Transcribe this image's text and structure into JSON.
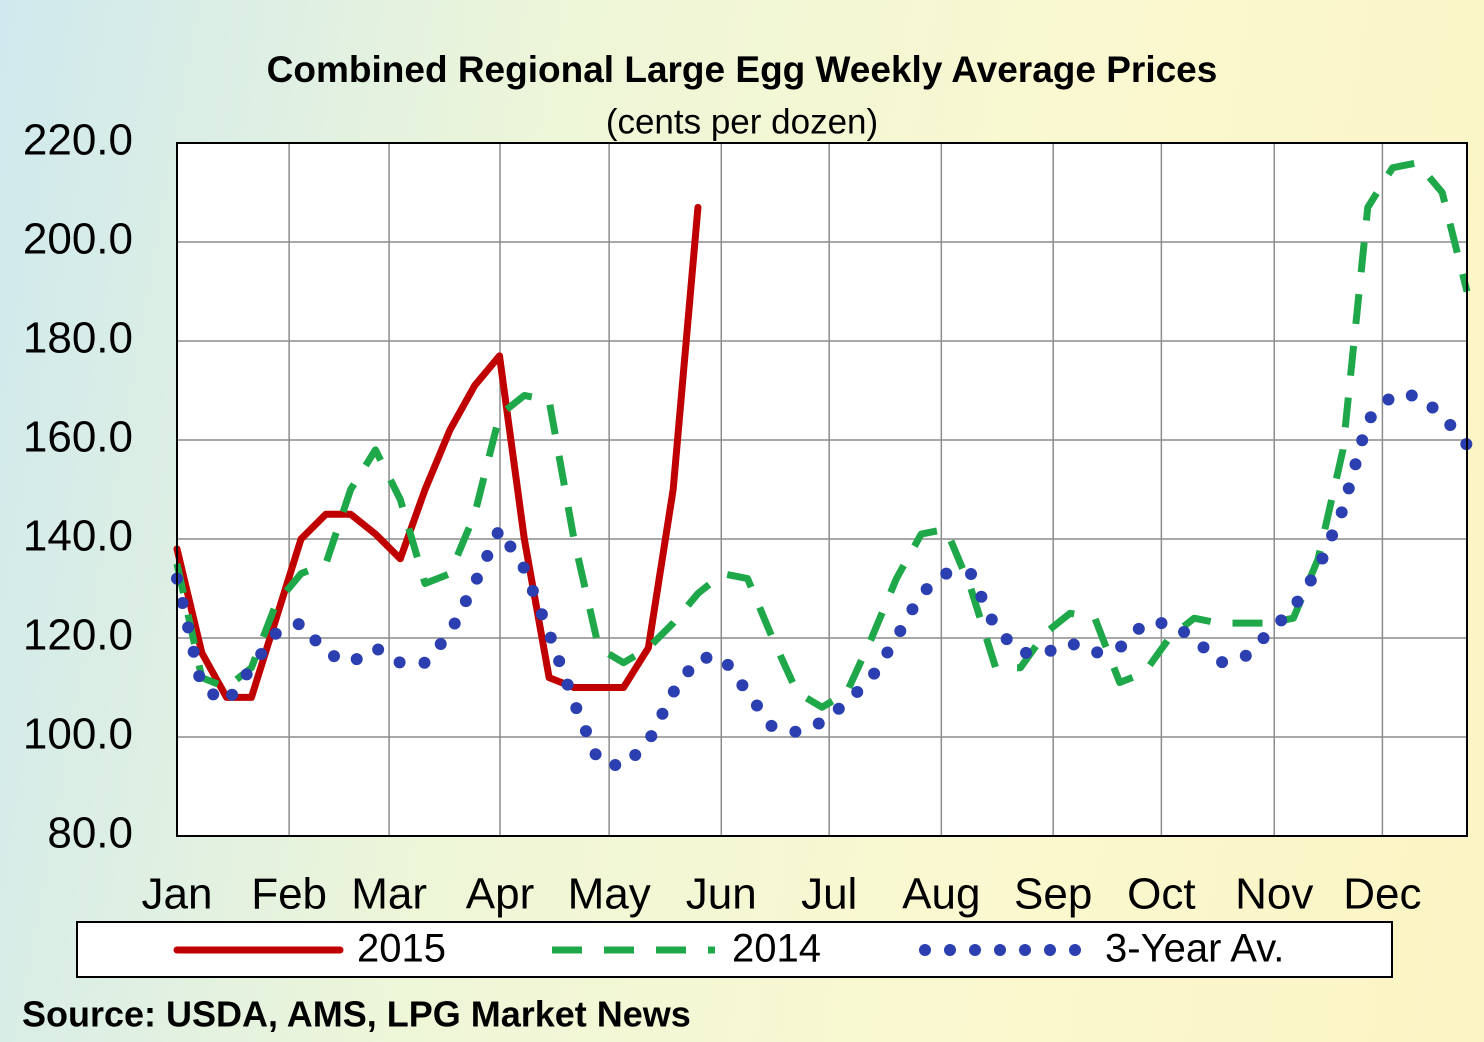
{
  "chart_data": {
    "type": "line",
    "title": "Combined Regional Large Egg Weekly Average Prices",
    "subtitle": "(cents per dozen)",
    "source": "Source: USDA, AMS, LPG  Market News",
    "x": [
      1,
      2,
      3,
      4,
      5,
      6,
      7,
      8,
      9,
      10,
      11,
      12,
      13,
      14,
      15,
      16,
      17,
      18,
      19,
      20,
      21,
      22,
      23,
      24,
      25,
      26,
      27,
      28,
      29,
      30,
      31,
      32,
      33,
      34,
      35,
      36,
      37,
      38,
      39,
      40,
      41,
      42,
      43,
      44,
      45,
      46,
      47,
      48,
      49,
      50,
      51,
      52,
      53
    ],
    "xlim": [
      1,
      53
    ],
    "xticks": [
      {
        "value": 1,
        "label": "Jan"
      },
      {
        "value": 5.52,
        "label": "Feb"
      },
      {
        "value": 9.55,
        "label": "Mar"
      },
      {
        "value": 14.02,
        "label": "Apr"
      },
      {
        "value": 18.42,
        "label": "May"
      },
      {
        "value": 22.94,
        "label": "Jun"
      },
      {
        "value": 27.29,
        "label": "Jul"
      },
      {
        "value": 31.81,
        "label": "Aug"
      },
      {
        "value": 36.32,
        "label": "Sep"
      },
      {
        "value": 40.68,
        "label": "Oct"
      },
      {
        "value": 45.23,
        "label": "Nov"
      },
      {
        "value": 49.59,
        "label": "Dec"
      }
    ],
    "ylim": [
      80,
      220
    ],
    "yticks": [
      {
        "value": 80,
        "label": "80.0"
      },
      {
        "value": 100,
        "label": "100.0"
      },
      {
        "value": 120,
        "label": "120.0"
      },
      {
        "value": 140,
        "label": "140.0"
      },
      {
        "value": 160,
        "label": "160.0"
      },
      {
        "value": 180,
        "label": "180.0"
      },
      {
        "value": 200,
        "label": "200.0"
      },
      {
        "value": 220,
        "label": "220.0"
      }
    ],
    "grid": true,
    "series": [
      {
        "name": "2015",
        "color": "#c00000",
        "style": "solid",
        "values": [
          138,
          117,
          108,
          108,
          124,
          140,
          145,
          145,
          141,
          136,
          150,
          162,
          171,
          177,
          140,
          112,
          110,
          110,
          110,
          118,
          150,
          207,
          null,
          null,
          null,
          null,
          null,
          null,
          null,
          null,
          null,
          null,
          null,
          null,
          null,
          null,
          null,
          null,
          null,
          null,
          null,
          null,
          null,
          null,
          null,
          null,
          null,
          null,
          null,
          null,
          null,
          null,
          null
        ]
      },
      {
        "name": "2014",
        "color": "#1fa84a",
        "style": "dashed",
        "values": [
          135,
          112,
          110,
          114,
          127,
          133,
          135,
          150,
          158,
          148,
          131,
          133,
          145,
          165,
          169,
          168,
          140,
          118,
          115,
          118,
          123,
          129,
          133,
          132,
          120,
          109,
          106,
          109,
          120,
          132,
          141,
          142,
          130,
          114,
          114,
          121,
          125,
          124,
          111,
          113,
          120,
          124,
          123,
          123,
          123,
          124,
          136,
          158,
          207,
          215,
          216,
          210,
          190
        ]
      },
      {
        "name": "3-Year Av.",
        "color": "#2b3fb0",
        "style": "dotted",
        "values": [
          132,
          110,
          107,
          114,
          121,
          123,
          117,
          115,
          118,
          115,
          115,
          121,
          131,
          142,
          134,
          121,
          107,
          95,
          94,
          99,
          109,
          116,
          116,
          109,
          102,
          101,
          103,
          107,
          112,
          120,
          129,
          133,
          133,
          122,
          117,
          117,
          119,
          117,
          118,
          123,
          123,
          120,
          115,
          116,
          121,
          126,
          134,
          146,
          164,
          169,
          169,
          165,
          159
        ]
      }
    ]
  }
}
